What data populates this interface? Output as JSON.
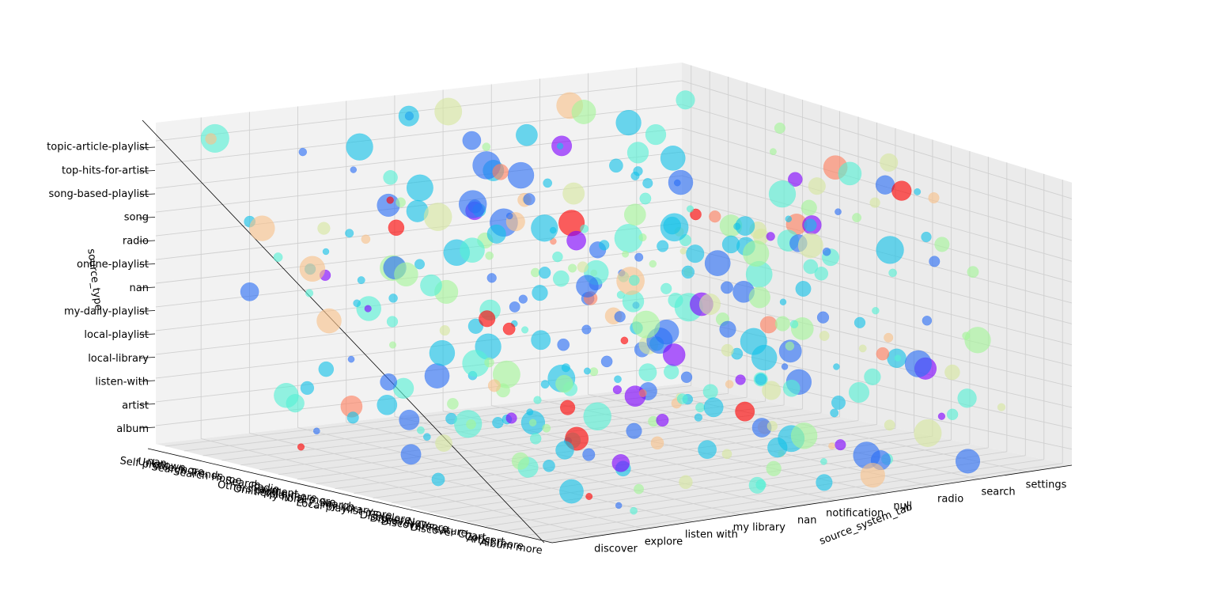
{
  "chart_data": {
    "type": "scatter",
    "projection": "3d",
    "grid": true,
    "xlabel": "source_system_tab",
    "ylabel": "",
    "zlabel": "source_type",
    "x_categories": [
      "discover",
      "explore",
      "listen with",
      "my library",
      "nan",
      "notification",
      "null",
      "radio",
      "search",
      "settings"
    ],
    "y_categories": [
      "nan",
      "Unknown",
      "Self profile more",
      "Search Trends",
      "Search Home",
      "Search",
      "Radio",
      "Payment",
      "Others profile more",
      "Online playlist more",
      "My library_Search",
      "My library",
      "Local playlist more",
      "Explore",
      "Discover New",
      "Discover Genre",
      "Discover Feature",
      "Discover Chart",
      "Concert",
      "Artist more",
      "Album more"
    ],
    "y_axis_title_visible": false,
    "z_categories": [
      "album",
      "artist",
      "listen-with",
      "local-library",
      "local-playlist",
      "my-daily-playlist",
      "nan",
      "online-playlist",
      "radio",
      "song",
      "song-based-playlist",
      "top-hits-for-artist",
      "topic-article-playlist"
    ],
    "point_count": 360,
    "colormap": [
      "#8000ff",
      "#2a6ef5",
      "#14c2e8",
      "#55f0d5",
      "#a4f59a",
      "#d6e7a0",
      "#f8c28a",
      "#ff8060",
      "#ff0000"
    ],
    "point_alpha": 0.62,
    "point_size_range": "small to large (bubble size varies)"
  }
}
